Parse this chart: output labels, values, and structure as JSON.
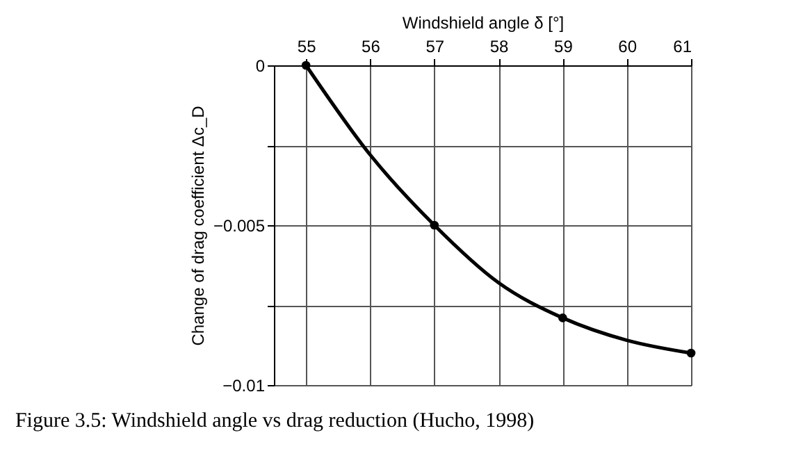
{
  "chart_data": {
    "type": "line",
    "xlabel": "Windshield angle δ [°]",
    "ylabel": "Change of drag coefficient Δc_D",
    "x": [
      55,
      56,
      57,
      58,
      59,
      60,
      61
    ],
    "series": [
      {
        "color": "#000000",
        "marker": "none",
        "values": [
          0,
          -0.0028,
          -0.005,
          -0.0068,
          -0.0079,
          -0.0086,
          -0.009
        ]
      },
      {
        "type": "scatter",
        "color": "#000000",
        "marker": "circle",
        "x": [
          55,
          57,
          59,
          61
        ],
        "values": [
          0,
          -0.005,
          -0.0079,
          -0.009
        ]
      }
    ],
    "xlim": [
      54.5,
      61
    ],
    "xticks": [
      55,
      56,
      57,
      58,
      59,
      60,
      61
    ],
    "ylim": [
      -0.01,
      0
    ],
    "yticks": [
      {
        "value": 0,
        "label": "0"
      },
      {
        "value": -0.0025,
        "label": null
      },
      {
        "value": -0.005,
        "label": "−0.005"
      },
      {
        "value": -0.0075,
        "label": null
      },
      {
        "value": -0.01,
        "label": "−0.01"
      }
    ],
    "grid": true,
    "annotations": [
      "Figure 3.5: Windshield angle vs drag reduction (Hucho, 1998)"
    ]
  }
}
